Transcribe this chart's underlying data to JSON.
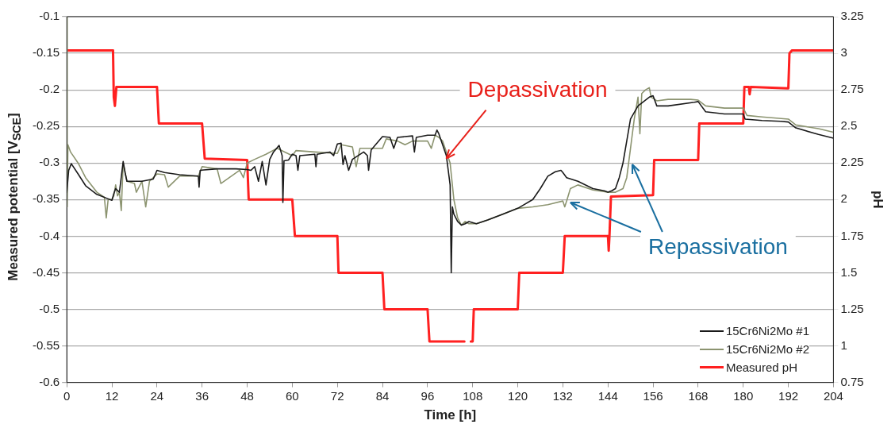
{
  "chart_data": {
    "type": "line",
    "xlabel": "Time [h]",
    "ylabel": "Measured potential [V$_{SCE}$]",
    "y2label": "pH",
    "xlim": [
      0,
      204
    ],
    "xticks": [
      0,
      12,
      24,
      36,
      48,
      60,
      72,
      84,
      96,
      108,
      120,
      132,
      144,
      156,
      168,
      180,
      192,
      204
    ],
    "ylim": [
      -0.6,
      -0.1
    ],
    "yticks": [
      -0.6,
      -0.55,
      -0.5,
      -0.45,
      -0.4,
      -0.35,
      -0.3,
      -0.25,
      -0.2,
      -0.15,
      -0.1
    ],
    "y2lim": [
      0.75,
      3.25
    ],
    "y2ticks": [
      0.75,
      1,
      1.25,
      1.5,
      1.75,
      2,
      2.25,
      2.5,
      2.75,
      3,
      3.25
    ],
    "grid": "y",
    "legend": "bottom right",
    "marker": "none",
    "line_style": "solid",
    "annotations": [
      {
        "text": "Depassivation",
        "x": 101,
        "y": -0.294
      },
      {
        "text": "Repassivation",
        "x": 134,
        "y": -0.354
      }
    ],
    "series": [
      {
        "name": "15Cr6Ni2Mo #1",
        "color": "#1a1a1a",
        "x": [
          0,
          0.5,
          1.2,
          3,
          5,
          8,
          11,
          12,
          12.5,
          13,
          14,
          15,
          15.5,
          16,
          20,
          23,
          24,
          26,
          30,
          35,
          35.2,
          35.5,
          40,
          45,
          48,
          49,
          50,
          51,
          52,
          53,
          54,
          55,
          56.5,
          57.3,
          57.5,
          57.8,
          59,
          60,
          61,
          61.5,
          62,
          66,
          66.3,
          66.6,
          70,
          71,
          72,
          73,
          73.5,
          74,
          75,
          76,
          79,
          80,
          80.3,
          81,
          84,
          86,
          87,
          88,
          92,
          92.5,
          93,
          96,
          98,
          98.5,
          99,
          100,
          101,
          102,
          102.3,
          102.6,
          103,
          104,
          105,
          106,
          107,
          109,
          112,
          116,
          120,
          124,
          126,
          128,
          130,
          131.5,
          132,
          133,
          136,
          140,
          143,
          144,
          145,
          146,
          147,
          148,
          149,
          150,
          152,
          155,
          156,
          157,
          160,
          167,
          168,
          170,
          175,
          180,
          180.5,
          185,
          190,
          192,
          194,
          200,
          204
        ],
        "values": [
          -0.34,
          -0.31,
          -0.301,
          -0.315,
          -0.331,
          -0.343,
          -0.349,
          -0.351,
          -0.342,
          -0.335,
          -0.34,
          -0.298,
          -0.313,
          -0.325,
          -0.325,
          -0.322,
          -0.31,
          -0.313,
          -0.316,
          -0.318,
          -0.333,
          -0.31,
          -0.308,
          -0.308,
          -0.309,
          -0.31,
          -0.305,
          -0.325,
          -0.298,
          -0.33,
          -0.295,
          -0.285,
          -0.276,
          -0.29,
          -0.354,
          -0.297,
          -0.296,
          -0.288,
          -0.29,
          -0.31,
          -0.29,
          -0.288,
          -0.305,
          -0.288,
          -0.285,
          -0.29,
          -0.274,
          -0.273,
          -0.302,
          -0.29,
          -0.31,
          -0.295,
          -0.285,
          -0.29,
          -0.31,
          -0.282,
          -0.264,
          -0.265,
          -0.28,
          -0.265,
          -0.263,
          -0.285,
          -0.265,
          -0.262,
          -0.262,
          -0.255,
          -0.26,
          -0.275,
          -0.29,
          -0.33,
          -0.45,
          -0.36,
          -0.37,
          -0.38,
          -0.385,
          -0.383,
          -0.38,
          -0.383,
          -0.378,
          -0.37,
          -0.362,
          -0.35,
          -0.335,
          -0.318,
          -0.312,
          -0.31,
          -0.313,
          -0.32,
          -0.325,
          -0.335,
          -0.338,
          -0.34,
          -0.338,
          -0.335,
          -0.32,
          -0.3,
          -0.27,
          -0.24,
          -0.222,
          -0.21,
          -0.208,
          -0.222,
          -0.222,
          -0.217,
          -0.216,
          -0.23,
          -0.233,
          -0.233,
          -0.24,
          -0.242,
          -0.243,
          -0.244,
          -0.252,
          -0.261,
          -0.266
        ]
      },
      {
        "name": "15Cr6Ni2Mo #2",
        "color": "#8c9470",
        "x": [
          0,
          0.1,
          0.3,
          1,
          3,
          5,
          8,
          10,
          10.5,
          11,
          12,
          12.5,
          13,
          13.5,
          14,
          14.5,
          15,
          16,
          18,
          18.5,
          20,
          21,
          22,
          24,
          26,
          27,
          30,
          35,
          36,
          40,
          41,
          46,
          47,
          48,
          50,
          53,
          56,
          58,
          60,
          61,
          66,
          72,
          73,
          76,
          77,
          78,
          84,
          85,
          88,
          90,
          92,
          96,
          97,
          98,
          99,
          100,
          102,
          103,
          104,
          105,
          106,
          107,
          109,
          112,
          116,
          120,
          124,
          128,
          132,
          132.5,
          133,
          134,
          136,
          140,
          144,
          146,
          148,
          149,
          150,
          151,
          152,
          152.5,
          153,
          154,
          155,
          155.5,
          157,
          160,
          166,
          168,
          170,
          175,
          180,
          181,
          185,
          192,
          194,
          200,
          204
        ],
        "values": [
          -0.1,
          -0.36,
          -0.275,
          -0.285,
          -0.3,
          -0.32,
          -0.34,
          -0.347,
          -0.375,
          -0.35,
          -0.35,
          -0.345,
          -0.33,
          -0.345,
          -0.34,
          -0.365,
          -0.3,
          -0.325,
          -0.328,
          -0.34,
          -0.325,
          -0.36,
          -0.325,
          -0.315,
          -0.316,
          -0.333,
          -0.318,
          -0.318,
          -0.305,
          -0.308,
          -0.328,
          -0.31,
          -0.32,
          -0.3,
          -0.295,
          -0.288,
          -0.28,
          -0.285,
          -0.29,
          -0.283,
          -0.285,
          -0.287,
          -0.275,
          -0.278,
          -0.305,
          -0.28,
          -0.28,
          -0.267,
          -0.27,
          -0.275,
          -0.27,
          -0.27,
          -0.28,
          -0.262,
          -0.265,
          -0.27,
          -0.3,
          -0.35,
          -0.375,
          -0.385,
          -0.38,
          -0.383,
          -0.383,
          -0.378,
          -0.37,
          -0.362,
          -0.36,
          -0.357,
          -0.352,
          -0.36,
          -0.352,
          -0.335,
          -0.33,
          -0.337,
          -0.34,
          -0.34,
          -0.335,
          -0.32,
          -0.28,
          -0.24,
          -0.21,
          -0.26,
          -0.205,
          -0.2,
          -0.197,
          -0.21,
          -0.215,
          -0.213,
          -0.213,
          -0.214,
          -0.222,
          -0.225,
          -0.225,
          -0.235,
          -0.237,
          -0.24,
          -0.248,
          -0.253,
          -0.258
        ]
      },
      {
        "name": "Measured pH",
        "color": "#ff2020",
        "axis": "y2",
        "x": [
          0,
          12.3,
          12.5,
          12.8,
          13.2,
          24,
          24.5,
          36,
          36.7,
          48,
          48.4,
          60,
          60.7,
          72,
          72.3,
          84,
          84.5,
          96,
          96.5,
          105.8,
          106.5,
          107.5,
          108,
          108.3,
          120,
          120.4,
          132,
          132.5,
          144,
          144.2,
          144.4,
          144.8,
          156,
          156.3,
          168,
          168.3,
          180,
          180.3,
          181.5,
          181.7,
          182,
          192,
          192.3,
          193,
          204
        ],
        "values": [
          3.02,
          3.02,
          2.7,
          2.64,
          2.77,
          2.77,
          2.52,
          2.52,
          2.28,
          2.27,
          2,
          2,
          1.75,
          1.75,
          1.5,
          1.5,
          1.25,
          1.25,
          1.03,
          1.03,
          null,
          1.03,
          1.03,
          1.25,
          1.25,
          1.5,
          1.5,
          1.75,
          1.75,
          1.65,
          1.75,
          2.02,
          2.03,
          2.27,
          2.27,
          2.52,
          2.52,
          2.77,
          2.77,
          2.72,
          2.77,
          2.76,
          3,
          3.02,
          3.02
        ]
      }
    ]
  }
}
